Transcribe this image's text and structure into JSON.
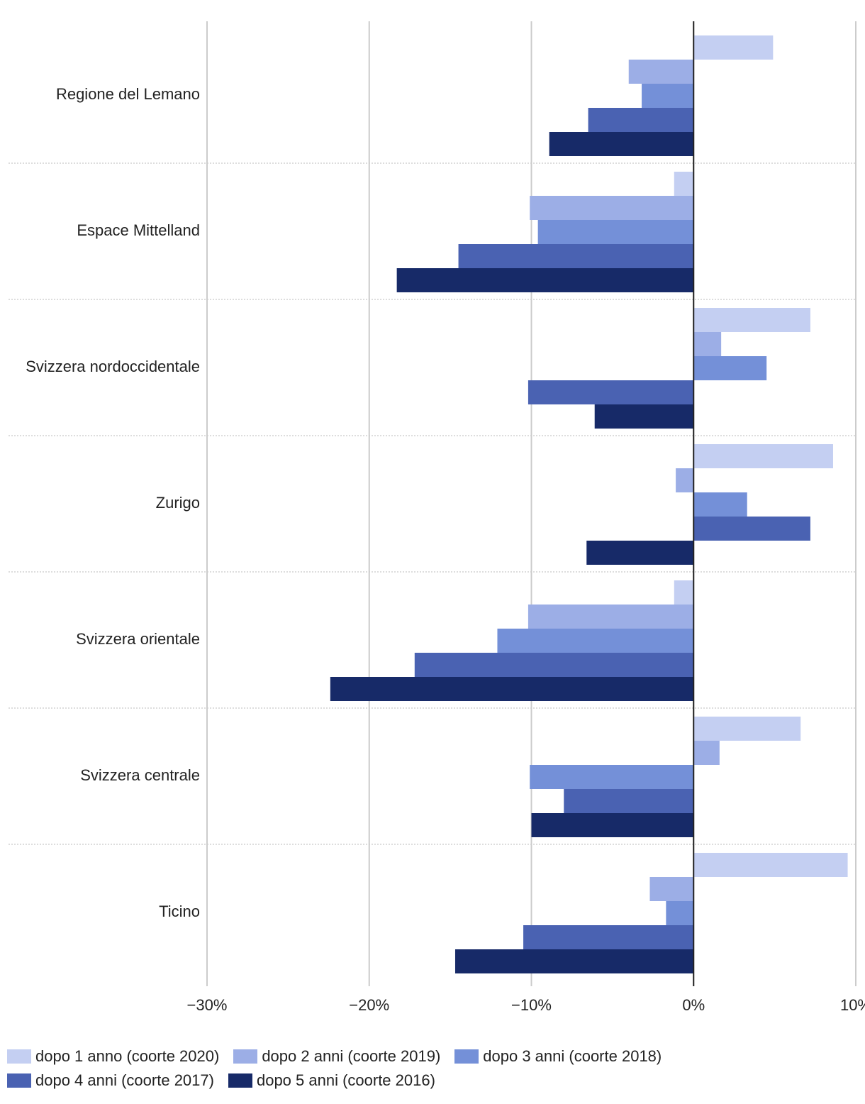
{
  "chart_data": {
    "type": "bar",
    "orientation": "horizontal",
    "categories": [
      "Regione del Lemano",
      "Espace Mittelland",
      "Svizzera nordoccidentale",
      "Zurigo",
      "Svizzera orientale",
      "Svizzera centrale",
      "Ticino"
    ],
    "series": [
      {
        "name": "dopo 1 anno (coorte 2020)",
        "color": "#c4cff2",
        "values": [
          4.9,
          -1.2,
          7.2,
          8.6,
          -1.2,
          6.6,
          9.5
        ]
      },
      {
        "name": "dopo 2 anni (coorte 2019)",
        "color": "#9caee6",
        "values": [
          -4.0,
          -10.1,
          1.7,
          -1.1,
          -10.2,
          1.6,
          -2.7
        ]
      },
      {
        "name": "dopo 3 anni (coorte 2018)",
        "color": "#7490d8",
        "values": [
          -3.2,
          -9.6,
          4.5,
          3.3,
          -12.1,
          -10.1,
          -1.7
        ]
      },
      {
        "name": "dopo 4 anni (coorte 2017)",
        "color": "#4a62b2",
        "values": [
          -6.5,
          -14.5,
          -10.2,
          7.2,
          -17.2,
          -8.0,
          -10.5
        ]
      },
      {
        "name": "dopo 5 anni (coorte 2016)",
        "color": "#172a68",
        "values": [
          -8.9,
          -18.3,
          -6.1,
          -6.6,
          -22.4,
          -10.0,
          -14.7
        ]
      }
    ],
    "xlim": [
      -30,
      10
    ],
    "xticks": [
      {
        "value": -30,
        "label": "−30%"
      },
      {
        "value": -20,
        "label": "−20%"
      },
      {
        "value": -10,
        "label": "−10%"
      },
      {
        "value": 0,
        "label": "0%"
      },
      {
        "value": 10,
        "label": "10%"
      }
    ],
    "grid": true
  }
}
